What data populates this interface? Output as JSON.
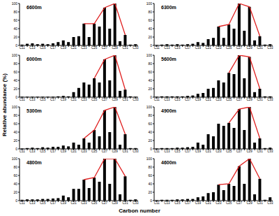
{
  "figure": {
    "xlabel": "Carbon number",
    "ylabel": "Relative abundance (%)"
  },
  "chart_data": [
    {
      "type": "bar",
      "title": "6600m",
      "categories": [
        "C11",
        null,
        "C13",
        null,
        "C15",
        null,
        "C17",
        null,
        "C19",
        null,
        "C21",
        null,
        "C23",
        null,
        "C25",
        null,
        "C27",
        null,
        "C29",
        null,
        "C31",
        null,
        "C33"
      ],
      "values": [
        2,
        4,
        5,
        3,
        4,
        3,
        5,
        8,
        12,
        8,
        20,
        22,
        52,
        20,
        52,
        45,
        90,
        40,
        100,
        10,
        25,
        2,
        3
      ],
      "color": "#000000",
      "trend": {
        "type": "line",
        "color": "#e02020",
        "values": [
          null,
          null,
          null,
          null,
          null,
          null,
          null,
          null,
          null,
          null,
          null,
          null,
          52,
          null,
          52,
          null,
          90,
          null,
          100,
          null,
          25,
          null,
          null
        ]
      },
      "ylim": [
        0,
        100
      ],
      "yticks": [
        0,
        20,
        40,
        60,
        80,
        100
      ]
    },
    {
      "type": "bar",
      "title": "6300m",
      "categories": [
        "C11",
        null,
        "C13",
        null,
        "C15",
        null,
        "C17",
        null,
        "C19",
        null,
        "C21",
        null,
        "C23",
        null,
        "C25",
        null,
        "C27",
        null,
        "C29",
        null,
        "C31",
        null,
        "C33"
      ],
      "values": [
        1,
        2,
        3,
        2,
        3,
        2,
        3,
        4,
        8,
        6,
        15,
        18,
        45,
        18,
        50,
        40,
        100,
        35,
        92,
        12,
        22,
        2,
        3
      ],
      "color": "#000000",
      "trend": {
        "type": "line",
        "color": "#e02020",
        "values": [
          null,
          null,
          null,
          null,
          null,
          null,
          null,
          null,
          null,
          null,
          null,
          null,
          45,
          null,
          50,
          null,
          100,
          null,
          92,
          null,
          22,
          null,
          null
        ]
      },
      "ylim": [
        0,
        100
      ],
      "yticks": [
        0,
        20,
        40,
        60,
        80,
        100
      ]
    },
    {
      "type": "bar",
      "title": "6000m",
      "categories": [
        "C11",
        null,
        "C13",
        null,
        "C15",
        null,
        "C17",
        null,
        "C19",
        null,
        "C21",
        null,
        "C23",
        null,
        "C25",
        null,
        "C27",
        null,
        "C29",
        null,
        "C31",
        null,
        "C33"
      ],
      "values": [
        1,
        1,
        1,
        1,
        1,
        1,
        1,
        2,
        3,
        2,
        12,
        22,
        35,
        30,
        45,
        35,
        90,
        40,
        100,
        15,
        18,
        2,
        1
      ],
      "color": "#000000",
      "trend": {
        "type": "line",
        "color": "#e02020",
        "values": [
          null,
          null,
          null,
          null,
          null,
          null,
          null,
          null,
          null,
          null,
          null,
          null,
          null,
          null,
          45,
          null,
          90,
          null,
          100,
          null,
          18,
          null,
          null
        ]
      },
      "ylim": [
        0,
        100
      ],
      "yticks": [
        0,
        20,
        40,
        60,
        80,
        100
      ]
    },
    {
      "type": "bar",
      "title": "5600m",
      "categories": [
        "C11",
        null,
        "C13",
        null,
        "C15",
        null,
        "C17",
        null,
        "C19",
        null,
        "C21",
        null,
        "C23",
        null,
        "C25",
        null,
        "C27",
        null,
        "C29",
        null,
        "C31",
        null,
        "C33"
      ],
      "values": [
        1,
        2,
        2,
        2,
        2,
        2,
        3,
        4,
        8,
        10,
        20,
        22,
        40,
        35,
        58,
        55,
        100,
        45,
        96,
        12,
        20,
        2,
        2
      ],
      "color": "#000000",
      "trend": {
        "type": "line",
        "color": "#e02020",
        "values": [
          null,
          null,
          null,
          null,
          null,
          null,
          null,
          null,
          null,
          null,
          null,
          null,
          null,
          null,
          58,
          null,
          100,
          null,
          96,
          null,
          20,
          null,
          null
        ]
      },
      "ylim": [
        0,
        100
      ],
      "yticks": [
        0,
        20,
        40,
        60,
        80,
        100
      ]
    },
    {
      "type": "bar",
      "title": "5300m",
      "categories": [
        "C11",
        null,
        "C13",
        null,
        "C15",
        null,
        "C17",
        null,
        "C19",
        null,
        "C21",
        null,
        "C23",
        null,
        "C25",
        null,
        "C27",
        null,
        "C29",
        null,
        "C31",
        null,
        "C33"
      ],
      "values": [
        1,
        2,
        3,
        2,
        4,
        3,
        5,
        5,
        8,
        6,
        15,
        10,
        25,
        15,
        45,
        30,
        92,
        40,
        100,
        10,
        35,
        2,
        2
      ],
      "color": "#000000",
      "trend": {
        "type": "line",
        "color": "#e02020",
        "values": [
          null,
          null,
          null,
          null,
          null,
          null,
          null,
          null,
          null,
          null,
          null,
          null,
          25,
          null,
          45,
          null,
          92,
          null,
          100,
          null,
          35,
          null,
          null
        ]
      },
      "ylim": [
        0,
        100
      ],
      "yticks": [
        0,
        20,
        40,
        60,
        80,
        100
      ]
    },
    {
      "type": "bar",
      "title": "4900m",
      "categories": [
        "C11",
        null,
        "C13",
        null,
        "C15",
        null,
        "C17",
        null,
        "C19",
        null,
        "C21",
        null,
        "C23",
        null,
        "C25",
        null,
        "C27",
        null,
        "C29",
        null,
        "C31",
        null,
        "C33"
      ],
      "values": [
        1,
        2,
        2,
        2,
        3,
        3,
        4,
        5,
        15,
        10,
        35,
        30,
        60,
        55,
        62,
        50,
        95,
        45,
        100,
        15,
        25,
        2,
        3
      ],
      "color": "#000000",
      "trend": {
        "type": "line",
        "color": "#e02020",
        "values": [
          null,
          null,
          null,
          null,
          null,
          null,
          null,
          null,
          null,
          null,
          null,
          null,
          null,
          null,
          62,
          null,
          95,
          null,
          100,
          null,
          25,
          null,
          null
        ]
      },
      "ylim": [
        0,
        100
      ],
      "yticks": [
        0,
        20,
        40,
        60,
        80,
        100
      ]
    },
    {
      "type": "bar",
      "title": "4800m",
      "categories": [
        "C11",
        null,
        "C13",
        null,
        "C15",
        null,
        "C17",
        null,
        "C19",
        null,
        "C21",
        null,
        "C23",
        null,
        "C25",
        null,
        "C27",
        null,
        "C29",
        null,
        "C31",
        null,
        "C33"
      ],
      "values": [
        2,
        3,
        3,
        3,
        4,
        4,
        5,
        6,
        12,
        8,
        28,
        28,
        50,
        30,
        55,
        45,
        100,
        40,
        100,
        15,
        58,
        2,
        3
      ],
      "color": "#000000",
      "trend": {
        "type": "line",
        "color": "#e02020",
        "values": [
          null,
          null,
          null,
          null,
          null,
          null,
          null,
          null,
          null,
          null,
          null,
          null,
          50,
          null,
          55,
          null,
          100,
          null,
          100,
          null,
          58,
          null,
          null
        ]
      },
      "ylim": [
        0,
        100
      ],
      "yticks": [
        0,
        20,
        40,
        60,
        80,
        100
      ]
    },
    {
      "type": "bar",
      "title": "4600m",
      "categories": [
        "C11",
        null,
        "C13",
        null,
        "C15",
        null,
        "C17",
        null,
        "C19",
        null,
        "C21",
        null,
        "C23",
        null,
        "C25",
        null,
        "C27",
        null,
        "C29",
        null,
        "C31",
        null,
        "C33"
      ],
      "values": [
        1,
        2,
        2,
        2,
        3,
        3,
        4,
        4,
        8,
        10,
        18,
        20,
        38,
        25,
        40,
        35,
        82,
        40,
        100,
        15,
        52,
        2,
        8
      ],
      "color": "#000000",
      "trend": {
        "type": "line",
        "color": "#e02020",
        "values": [
          null,
          null,
          null,
          null,
          null,
          null,
          null,
          null,
          null,
          null,
          null,
          null,
          38,
          null,
          40,
          null,
          82,
          null,
          100,
          null,
          52,
          null,
          null
        ]
      },
      "ylim": [
        0,
        100
      ],
      "yticks": [
        0,
        20,
        40,
        60,
        80,
        100
      ]
    }
  ]
}
